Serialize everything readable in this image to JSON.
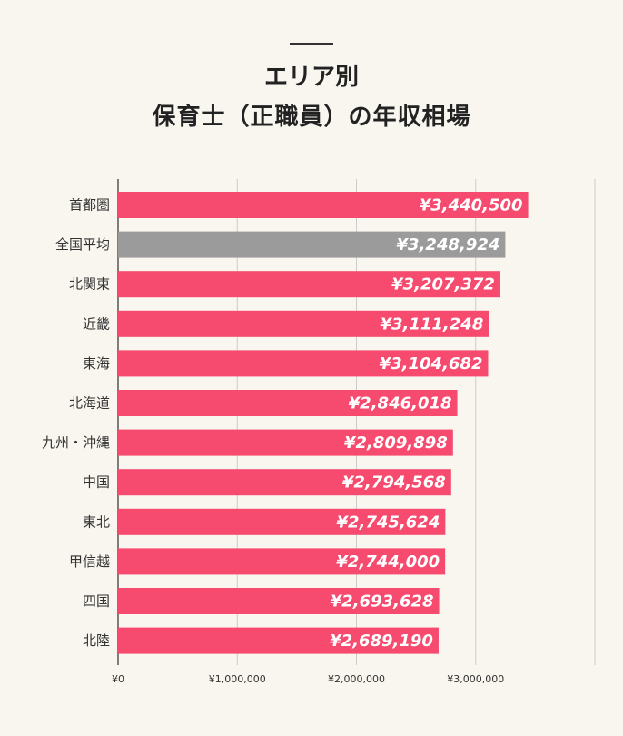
{
  "title_line1": "エリア別",
  "title_line2": "保育士（正職員）の年収相場",
  "chart_data": {
    "type": "bar",
    "orientation": "horizontal",
    "categories": [
      "首都圏",
      "全国平均",
      "北関東",
      "近畿",
      "東海",
      "北海道",
      "九州・沖縄",
      "中国",
      "東北",
      "甲信越",
      "四国",
      "北陸"
    ],
    "values": [
      3440500,
      3248924,
      3207372,
      3111248,
      3104682,
      2846018,
      2809898,
      2794568,
      2745624,
      2744000,
      2693628,
      2689190
    ],
    "value_labels": [
      "¥3,440,500",
      "¥3,248,924",
      "¥3,207,372",
      "¥3,111,248",
      "¥3,104,682",
      "¥2,846,018",
      "¥2,809,898",
      "¥2,794,568",
      "¥2,745,624",
      "¥2,744,000",
      "¥2,693,628",
      "¥2,689,190"
    ],
    "xlim": [
      0,
      4000000
    ],
    "x_ticks": [
      0,
      1000000,
      2000000,
      3000000
    ],
    "x_tick_labels": [
      "¥0",
      "¥1,000,000",
      "¥2,000,000",
      "¥3,000,000"
    ],
    "grid": true,
    "colors": {
      "bar": "#f64a6e",
      "highlight_bar": "#9b9b9b",
      "grid": "#cccccc",
      "axis": "#555555"
    },
    "highlight_index": 1
  }
}
